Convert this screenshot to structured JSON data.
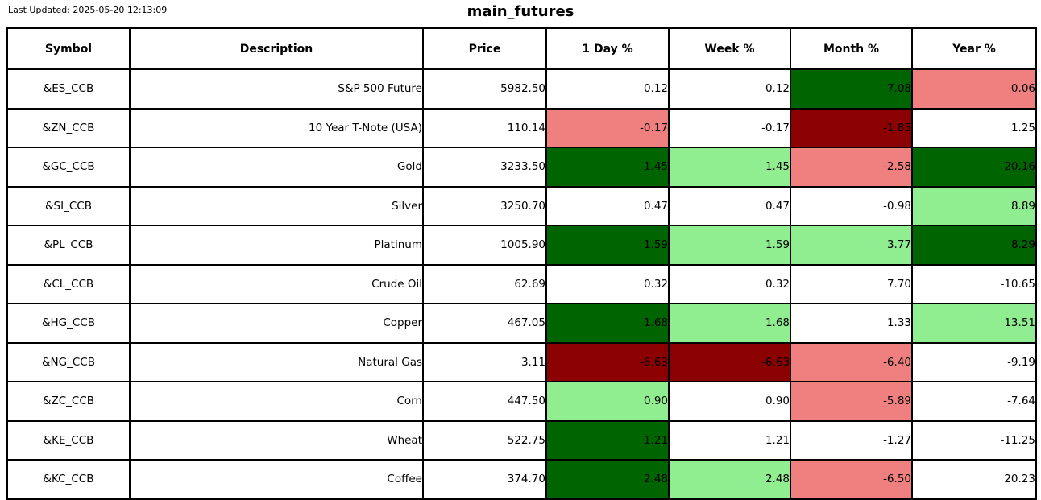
{
  "header": {
    "last_updated_label": "Last Updated: 2025-05-20 12:13:09",
    "title": "main_futures"
  },
  "chart_data": {
    "type": "table",
    "title": "main_futures",
    "last_updated": "2025-05-20 12:13:09",
    "columns": [
      "Symbol",
      "Description",
      "Price",
      "1 Day %",
      "Week %",
      "Month %",
      "Year %"
    ],
    "palette": {
      "strong_up": "#006400",
      "up": "#90EE90",
      "down": "#F08080",
      "strong_down": "#8B0000",
      "neutral": "#FFFFFF"
    },
    "rows": [
      {
        "symbol": "&ES_CCB",
        "description": "S&P 500 Future",
        "price": "5982.50",
        "cells": [
          {
            "value": "0.12",
            "bg": "neutral"
          },
          {
            "value": "0.12",
            "bg": "neutral"
          },
          {
            "value": "7.08",
            "bg": "strong_up"
          },
          {
            "value": "-0.06",
            "bg": "down"
          }
        ]
      },
      {
        "symbol": "&ZN_CCB",
        "description": "10 Year T-Note (USA)",
        "price": "110.14",
        "cells": [
          {
            "value": "-0.17",
            "bg": "down"
          },
          {
            "value": "-0.17",
            "bg": "neutral"
          },
          {
            "value": "-1.85",
            "bg": "strong_down"
          },
          {
            "value": "1.25",
            "bg": "neutral"
          }
        ]
      },
      {
        "symbol": "&GC_CCB",
        "description": "Gold",
        "price": "3233.50",
        "cells": [
          {
            "value": "1.45",
            "bg": "strong_up"
          },
          {
            "value": "1.45",
            "bg": "up"
          },
          {
            "value": "-2.58",
            "bg": "down"
          },
          {
            "value": "20.16",
            "bg": "strong_up"
          }
        ]
      },
      {
        "symbol": "&SI_CCB",
        "description": "Silver",
        "price": "3250.70",
        "cells": [
          {
            "value": "0.47",
            "bg": "neutral"
          },
          {
            "value": "0.47",
            "bg": "neutral"
          },
          {
            "value": "-0.98",
            "bg": "neutral"
          },
          {
            "value": "8.89",
            "bg": "up"
          }
        ]
      },
      {
        "symbol": "&PL_CCB",
        "description": "Platinum",
        "price": "1005.90",
        "cells": [
          {
            "value": "1.59",
            "bg": "strong_up"
          },
          {
            "value": "1.59",
            "bg": "up"
          },
          {
            "value": "3.77",
            "bg": "up"
          },
          {
            "value": "8.29",
            "bg": "strong_up"
          }
        ]
      },
      {
        "symbol": "&CL_CCB",
        "description": "Crude Oil",
        "price": "62.69",
        "cells": [
          {
            "value": "0.32",
            "bg": "neutral"
          },
          {
            "value": "0.32",
            "bg": "neutral"
          },
          {
            "value": "7.70",
            "bg": "neutral"
          },
          {
            "value": "-10.65",
            "bg": "neutral"
          }
        ]
      },
      {
        "symbol": "&HG_CCB",
        "description": "Copper",
        "price": "467.05",
        "cells": [
          {
            "value": "1.68",
            "bg": "strong_up"
          },
          {
            "value": "1.68",
            "bg": "up"
          },
          {
            "value": "1.33",
            "bg": "neutral"
          },
          {
            "value": "13.51",
            "bg": "up"
          }
        ]
      },
      {
        "symbol": "&NG_CCB",
        "description": "Natural Gas",
        "price": "3.11",
        "cells": [
          {
            "value": "-6.63",
            "bg": "strong_down"
          },
          {
            "value": "-6.63",
            "bg": "strong_down"
          },
          {
            "value": "-6.40",
            "bg": "down"
          },
          {
            "value": "-9.19",
            "bg": "neutral"
          }
        ]
      },
      {
        "symbol": "&ZC_CCB",
        "description": "Corn",
        "price": "447.50",
        "cells": [
          {
            "value": "0.90",
            "bg": "up"
          },
          {
            "value": "0.90",
            "bg": "neutral"
          },
          {
            "value": "-5.89",
            "bg": "down"
          },
          {
            "value": "-7.64",
            "bg": "neutral"
          }
        ]
      },
      {
        "symbol": "&KE_CCB",
        "description": "Wheat",
        "price": "522.75",
        "cells": [
          {
            "value": "1.21",
            "bg": "strong_up"
          },
          {
            "value": "1.21",
            "bg": "neutral"
          },
          {
            "value": "-1.27",
            "bg": "neutral"
          },
          {
            "value": "-11.25",
            "bg": "neutral"
          }
        ]
      },
      {
        "symbol": "&KC_CCB",
        "description": "Coffee",
        "price": "374.70",
        "cells": [
          {
            "value": "2.48",
            "bg": "strong_up"
          },
          {
            "value": "2.48",
            "bg": "up"
          },
          {
            "value": "-6.50",
            "bg": "down"
          },
          {
            "value": "20.23",
            "bg": "neutral"
          }
        ]
      }
    ]
  }
}
